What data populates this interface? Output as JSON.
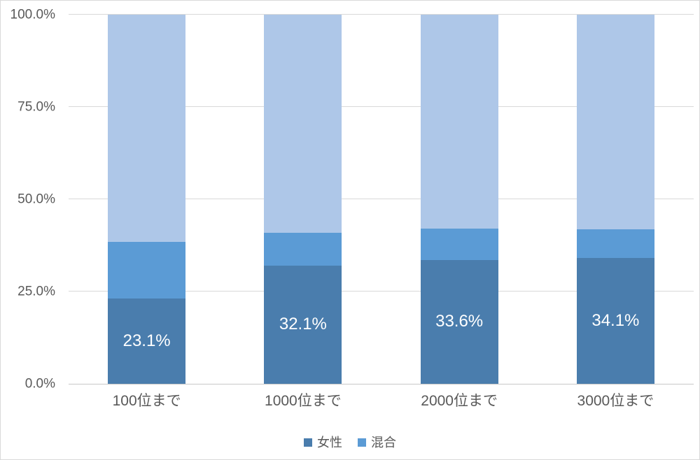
{
  "chart_data": {
    "type": "bar",
    "stacked": true,
    "percent_stacked": true,
    "title": "",
    "xlabel": "",
    "ylabel": "",
    "ylim": [
      0,
      100
    ],
    "grid": true,
    "legend_position": "bottom",
    "categories": [
      "100位まで",
      "1000位まで",
      "2000位まで",
      "3000位まで"
    ],
    "yticks": [
      "0.0%",
      "25.0%",
      "50.0%",
      "75.0%",
      "100.0%"
    ],
    "series": [
      {
        "name": "女性",
        "color": "#4A7DAD",
        "values": [
          23.1,
          32.1,
          33.6,
          34.1
        ],
        "data_labels": [
          "23.1%",
          "32.1%",
          "33.6%",
          "34.1%"
        ],
        "in_legend": true
      },
      {
        "name": "混合",
        "color": "#5B9BD5",
        "values": [
          15.4,
          8.9,
          8.5,
          7.7
        ],
        "in_legend": true
      },
      {
        "name": "",
        "color": "#AEC7E8",
        "values": [
          61.5,
          59.0,
          57.9,
          58.2
        ],
        "in_legend": false
      }
    ],
    "colors": {
      "gridline": "#D9D9D9",
      "axis_text": "#595959",
      "data_label_text": "#FFFFFF",
      "background": "#FFFFFF"
    }
  }
}
